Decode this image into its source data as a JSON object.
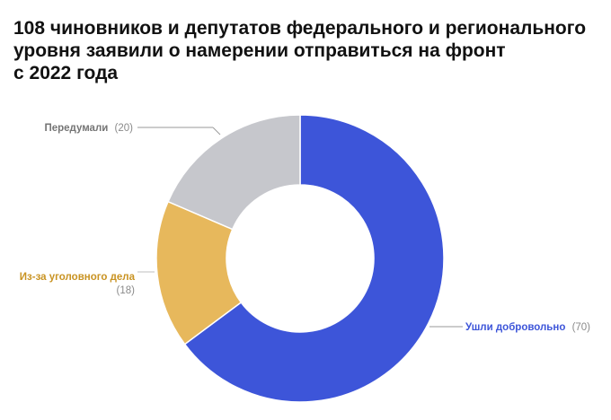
{
  "title": {
    "line1": "108 чиновников и депутатов федерального и регионального",
    "line2": "уровня заявили о намерении отправиться на фронт",
    "line3": "с 2022 года"
  },
  "chart_data": {
    "type": "pie",
    "variant": "donut",
    "title": "108 чиновников и депутатов федерального и регионального уровня заявили о намерении отправиться на фронт с 2022 года",
    "total": 108,
    "slices": [
      {
        "label": "Ушли добровольно",
        "value": 70,
        "value_label": "(70)",
        "color": "#3d55d9"
      },
      {
        "label": "Из-за уголовного дела",
        "value": 18,
        "value_label": "(18)",
        "color": "#e7b85c"
      },
      {
        "label": "Передумали",
        "value": 20,
        "value_label": "(20)",
        "color": "#c6c7cc"
      }
    ],
    "start_angle": "12 o'clock",
    "direction": "clockwise",
    "legend": "none",
    "label_style": "callout lines"
  }
}
